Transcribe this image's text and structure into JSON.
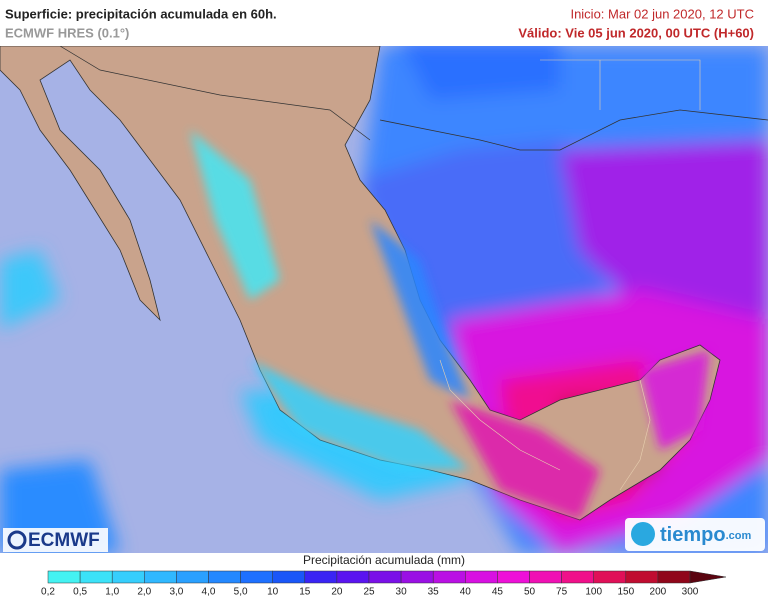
{
  "header": {
    "title": "Superficie: precipitación acumulada en 60h.",
    "model": "ECMWF HRES (0.1°)",
    "init": "Inicio: Mar 02 jun 2020, 12 UTC",
    "valid": "Válido: Vie 05 jun 2020, 00 UTC (H+60)"
  },
  "logos": {
    "left": "ECMWF",
    "right": "tiempo",
    "right_suffix": ".com"
  },
  "legend": {
    "title": "Precipitación acumulada (mm)",
    "labels": [
      "0,2",
      "0,5",
      "1,0",
      "2,0",
      "3,0",
      "4,0",
      "5,0",
      "10",
      "15",
      "20",
      "25",
      "30",
      "35",
      "40",
      "45",
      "50",
      "75",
      "100",
      "150",
      "200",
      "300"
    ],
    "colors": [
      "#44f2f2",
      "#3ce2f8",
      "#36cefc",
      "#30b8ff",
      "#2aa0ff",
      "#2488ff",
      "#1e70ff",
      "#1a56f8",
      "#3a24f4",
      "#5a14f0",
      "#7a10e8",
      "#9a10e4",
      "#ba10e4",
      "#d810e2",
      "#ee10d8",
      "#f010b4",
      "#f0108a",
      "#e01058",
      "#c00c30",
      "#90061a",
      "#5a0410"
    ]
  }
}
